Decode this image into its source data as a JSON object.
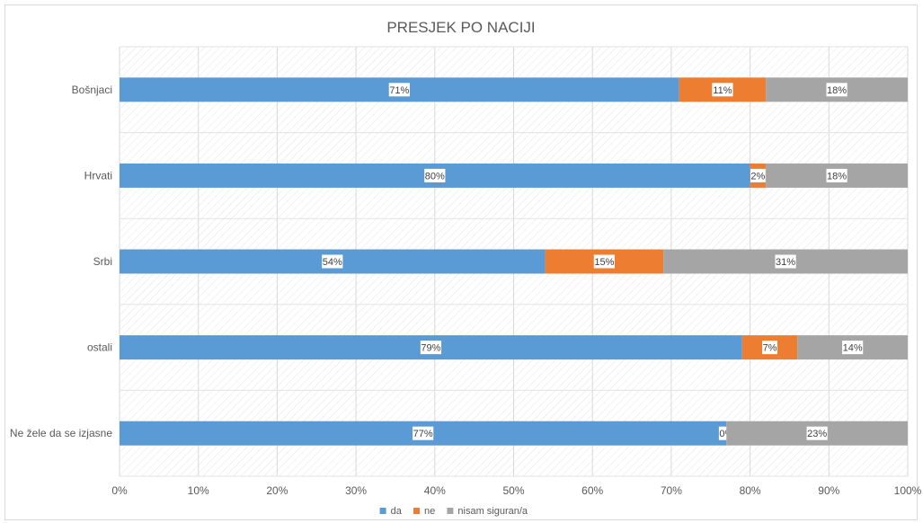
{
  "chart_data": {
    "type": "bar",
    "orientation": "horizontal",
    "stacked": true,
    "title": "PRESJEK PO NACIJI",
    "categories": [
      "Bošnjaci",
      "Hrvati",
      "Srbi",
      "ostali",
      "Ne žele da se izjasne"
    ],
    "series": [
      {
        "name": "da",
        "color": "#5b9bd5",
        "values": [
          71,
          80,
          54,
          79,
          77
        ]
      },
      {
        "name": "ne",
        "color": "#ed7d31",
        "values": [
          11,
          2,
          15,
          7,
          0
        ]
      },
      {
        "name": "nisam siguran/a",
        "color": "#a5a5a5",
        "values": [
          18,
          18,
          31,
          14,
          23
        ]
      }
    ],
    "value_format": "percent",
    "xlim": [
      0,
      100
    ],
    "x_ticks": [
      "0%",
      "10%",
      "20%",
      "30%",
      "40%",
      "50%",
      "60%",
      "70%",
      "80%",
      "90%",
      "100%"
    ],
    "grid": true,
    "legend_position": "bottom"
  }
}
